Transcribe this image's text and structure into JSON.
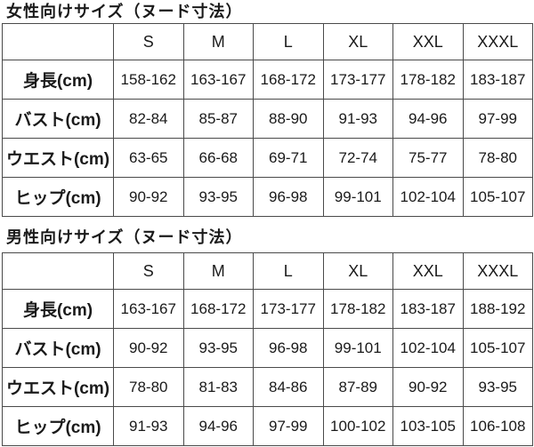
{
  "page": {
    "background_color": "#ffffff",
    "text_color": "#1a1a1a",
    "border_color": "#4a4a4a"
  },
  "tables": [
    {
      "title": "女性向けサイズ（ヌード寸法）",
      "columns": [
        "",
        "S",
        "M",
        "L",
        "XL",
        "XXL",
        "XXXL"
      ],
      "rows": [
        {
          "label": "身長(cm)",
          "values": [
            "158-162",
            "163-167",
            "168-172",
            "173-177",
            "178-182",
            "183-187"
          ]
        },
        {
          "label": "バスト(cm)",
          "values": [
            "82-84",
            "85-87",
            "88-90",
            "91-93",
            "94-96",
            "97-99"
          ]
        },
        {
          "label": "ウエスト(cm)",
          "values": [
            "63-65",
            "66-68",
            "69-71",
            "72-74",
            "75-77",
            "78-80"
          ]
        },
        {
          "label": "ヒップ(cm)",
          "values": [
            "90-92",
            "93-95",
            "96-98",
            "99-101",
            "102-104",
            "105-107"
          ]
        }
      ]
    },
    {
      "title": "男性向けサイズ（ヌード寸法）",
      "columns": [
        "",
        "S",
        "M",
        "L",
        "XL",
        "XXL",
        "XXXL"
      ],
      "rows": [
        {
          "label": "身長(cm)",
          "values": [
            "163-167",
            "168-172",
            "173-177",
            "178-182",
            "183-187",
            "188-192"
          ]
        },
        {
          "label": "バスト(cm)",
          "values": [
            "90-92",
            "93-95",
            "96-98",
            "99-101",
            "102-104",
            "105-107"
          ]
        },
        {
          "label": "ウエスト(cm)",
          "values": [
            "78-80",
            "81-83",
            "84-86",
            "87-89",
            "90-92",
            "93-95"
          ]
        },
        {
          "label": "ヒップ(cm)",
          "values": [
            "91-93",
            "94-96",
            "97-99",
            "100-102",
            "103-105",
            "106-108"
          ]
        }
      ]
    }
  ]
}
